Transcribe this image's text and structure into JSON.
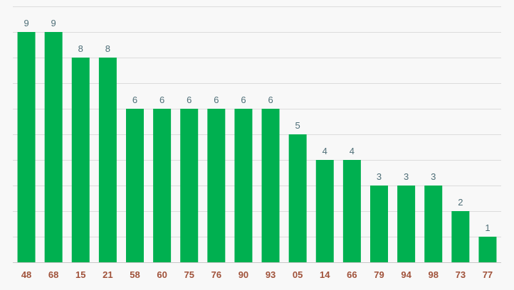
{
  "chart_data": {
    "type": "bar",
    "categories": [
      "48",
      "68",
      "15",
      "21",
      "58",
      "60",
      "75",
      "76",
      "90",
      "93",
      "05",
      "14",
      "66",
      "79",
      "94",
      "98",
      "73",
      "77"
    ],
    "values": [
      9,
      9,
      8,
      8,
      6,
      6,
      6,
      6,
      6,
      6,
      5,
      4,
      4,
      3,
      3,
      3,
      2,
      1
    ],
    "data_labels": [
      "9",
      "9",
      "8",
      "8",
      "6",
      "6",
      "6",
      "6",
      "6",
      "6",
      "5",
      "4",
      "4",
      "3",
      "3",
      "3",
      "2",
      "1"
    ],
    "ylim": [
      0,
      9
    ],
    "grid": true,
    "gridline_step": 1,
    "colors": {
      "bar": "#00b050",
      "data_label": "#4f6f78",
      "tick_label": "#a0523a",
      "grid": "#dcdcdc",
      "background": "#f8f8f8"
    }
  }
}
